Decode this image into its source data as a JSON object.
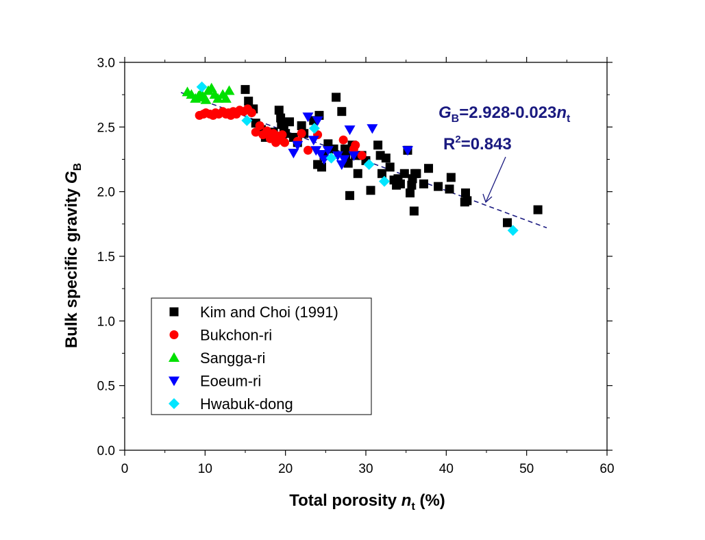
{
  "chart_data": {
    "type": "scatter",
    "title": "",
    "xlabel": "Total porosity n_t (%)",
    "ylabel": "Bulk specific gravity G_B",
    "xlabel_parts": {
      "pre": "Total porosity ",
      "var": "n",
      "sub": "t",
      "post": " (%)"
    },
    "ylabel_parts": {
      "pre": "Bulk specific gravity ",
      "var": "G",
      "sub": "B"
    },
    "xlim": [
      0,
      60
    ],
    "ylim": [
      0,
      3
    ],
    "xticks": [
      "0",
      "10",
      "20",
      "30",
      "40",
      "50",
      "60"
    ],
    "yticks": [
      "0.0",
      "0.5",
      "1.0",
      "1.5",
      "2.0",
      "2.5",
      "3.0"
    ],
    "grid": false,
    "legend_position": "bottom-left",
    "series": [
      {
        "name": "Kim and Choi (1991)",
        "marker": "square",
        "color": "#000000",
        "points": [
          [
            15.0,
            2.79
          ],
          [
            15.4,
            2.7
          ],
          [
            16.0,
            2.64
          ],
          [
            16.3,
            2.53
          ],
          [
            17.0,
            2.48
          ],
          [
            17.5,
            2.42
          ],
          [
            18.5,
            2.46
          ],
          [
            19.2,
            2.63
          ],
          [
            19.4,
            2.57
          ],
          [
            19.5,
            2.52
          ],
          [
            19.8,
            2.48
          ],
          [
            19.6,
            2.4
          ],
          [
            20.0,
            2.45
          ],
          [
            20.5,
            2.54
          ],
          [
            21.0,
            2.42
          ],
          [
            21.5,
            2.38
          ],
          [
            22.0,
            2.51
          ],
          [
            22.3,
            2.45
          ],
          [
            23.5,
            2.55
          ],
          [
            24.0,
            2.21
          ],
          [
            24.2,
            2.59
          ],
          [
            24.5,
            2.19
          ],
          [
            24.8,
            2.28
          ],
          [
            25.3,
            2.37
          ],
          [
            26.0,
            2.33
          ],
          [
            26.3,
            2.73
          ],
          [
            27.0,
            2.62
          ],
          [
            27.4,
            2.33
          ],
          [
            27.5,
            2.28
          ],
          [
            27.8,
            2.22
          ],
          [
            28.0,
            1.97
          ],
          [
            28.3,
            2.36
          ],
          [
            28.7,
            2.28
          ],
          [
            29.0,
            2.14
          ],
          [
            29.5,
            2.28
          ],
          [
            30.0,
            2.24
          ],
          [
            30.6,
            2.01
          ],
          [
            31.5,
            2.36
          ],
          [
            31.8,
            2.28
          ],
          [
            32.0,
            2.14
          ],
          [
            32.5,
            2.26
          ],
          [
            33.0,
            2.19
          ],
          [
            33.5,
            2.09
          ],
          [
            33.8,
            2.05
          ],
          [
            34.0,
            2.1
          ],
          [
            34.3,
            2.06
          ],
          [
            34.8,
            2.14
          ],
          [
            35.2,
            2.32
          ],
          [
            35.5,
            1.99
          ],
          [
            35.7,
            2.05
          ],
          [
            35.8,
            2.1
          ],
          [
            36.0,
            1.85
          ],
          [
            36.1,
            2.14
          ],
          [
            36.3,
            2.14
          ],
          [
            37.2,
            2.06
          ],
          [
            37.8,
            2.18
          ],
          [
            39.0,
            2.04
          ],
          [
            40.4,
            2.02
          ],
          [
            40.6,
            2.11
          ],
          [
            42.3,
            1.92
          ],
          [
            42.4,
            1.99
          ],
          [
            42.6,
            1.93
          ],
          [
            47.6,
            1.76
          ],
          [
            51.4,
            1.86
          ]
        ]
      },
      {
        "name": "Bukchon-ri",
        "marker": "circle",
        "color": "#ff0000",
        "points": [
          [
            9.3,
            2.59
          ],
          [
            9.8,
            2.6
          ],
          [
            10.1,
            2.61
          ],
          [
            10.6,
            2.6
          ],
          [
            11.0,
            2.59
          ],
          [
            11.3,
            2.61
          ],
          [
            11.7,
            2.6
          ],
          [
            12.2,
            2.62
          ],
          [
            12.6,
            2.6
          ],
          [
            12.9,
            2.61
          ],
          [
            13.2,
            2.59
          ],
          [
            13.5,
            2.62
          ],
          [
            13.9,
            2.6
          ],
          [
            14.3,
            2.63
          ],
          [
            14.8,
            2.62
          ],
          [
            15.3,
            2.64
          ],
          [
            15.8,
            2.61
          ],
          [
            16.3,
            2.46
          ],
          [
            16.8,
            2.51
          ],
          [
            17.2,
            2.44
          ],
          [
            17.7,
            2.47
          ],
          [
            18.1,
            2.41
          ],
          [
            18.5,
            2.45
          ],
          [
            18.8,
            2.38
          ],
          [
            19.0,
            2.43
          ],
          [
            19.3,
            2.4
          ],
          [
            19.6,
            2.44
          ],
          [
            19.9,
            2.38
          ],
          [
            21.5,
            2.39
          ],
          [
            22.0,
            2.45
          ],
          [
            22.8,
            2.32
          ],
          [
            24.0,
            2.44
          ],
          [
            27.2,
            2.4
          ],
          [
            28.5,
            2.33
          ],
          [
            28.7,
            2.36
          ],
          [
            29.5,
            2.28
          ]
        ]
      },
      {
        "name": "Sangga-ri",
        "marker": "triangle-up",
        "color": "#00e000",
        "points": [
          [
            7.8,
            2.77
          ],
          [
            8.3,
            2.75
          ],
          [
            8.8,
            2.72
          ],
          [
            9.2,
            2.74
          ],
          [
            9.5,
            2.76
          ],
          [
            9.8,
            2.73
          ],
          [
            10.1,
            2.71
          ],
          [
            10.4,
            2.78
          ],
          [
            10.8,
            2.8
          ],
          [
            11.2,
            2.75
          ],
          [
            11.6,
            2.72
          ],
          [
            12.2,
            2.75
          ],
          [
            12.6,
            2.72
          ],
          [
            13.0,
            2.78
          ]
        ]
      },
      {
        "name": "Eoeum-ri",
        "marker": "triangle-down",
        "color": "#0000ff",
        "points": [
          [
            21.0,
            2.3
          ],
          [
            21.5,
            2.36
          ],
          [
            22.8,
            2.58
          ],
          [
            23.5,
            2.4
          ],
          [
            23.8,
            2.32
          ],
          [
            24.0,
            2.55
          ],
          [
            24.4,
            2.29
          ],
          [
            24.8,
            2.25
          ],
          [
            25.3,
            2.32
          ],
          [
            26.5,
            2.28
          ],
          [
            27.0,
            2.21
          ],
          [
            27.3,
            2.25
          ],
          [
            28.0,
            2.48
          ],
          [
            28.5,
            2.28
          ],
          [
            30.8,
            2.49
          ],
          [
            35.2,
            2.32
          ]
        ]
      },
      {
        "name": "Hwabuk-dong",
        "marker": "diamond",
        "color": "#00e5ff",
        "points": [
          [
            9.6,
            2.81
          ],
          [
            15.2,
            2.55
          ],
          [
            23.6,
            2.49
          ],
          [
            25.7,
            2.26
          ],
          [
            30.4,
            2.21
          ],
          [
            32.3,
            2.08
          ],
          [
            48.3,
            1.7
          ]
        ]
      }
    ],
    "fit_line": {
      "equation": "G_B=2.928-0.023n_t",
      "intercept": 2.928,
      "slope": -0.023,
      "x_range": [
        7,
        52.5
      ],
      "r2_label": "R2=0.843",
      "r2_value": "=0.843",
      "color": "#1a1a80"
    },
    "annotation": {
      "eq_parts": {
        "var1": "G",
        "sub1": "B",
        "body": "=2.928-0.023",
        "var2": "n",
        "sub2": "t"
      },
      "r2_parts": {
        "base": "R",
        "sup": "2",
        "rest": "=0.843"
      },
      "arrow_points_to": [
        45,
        1.91
      ]
    }
  }
}
